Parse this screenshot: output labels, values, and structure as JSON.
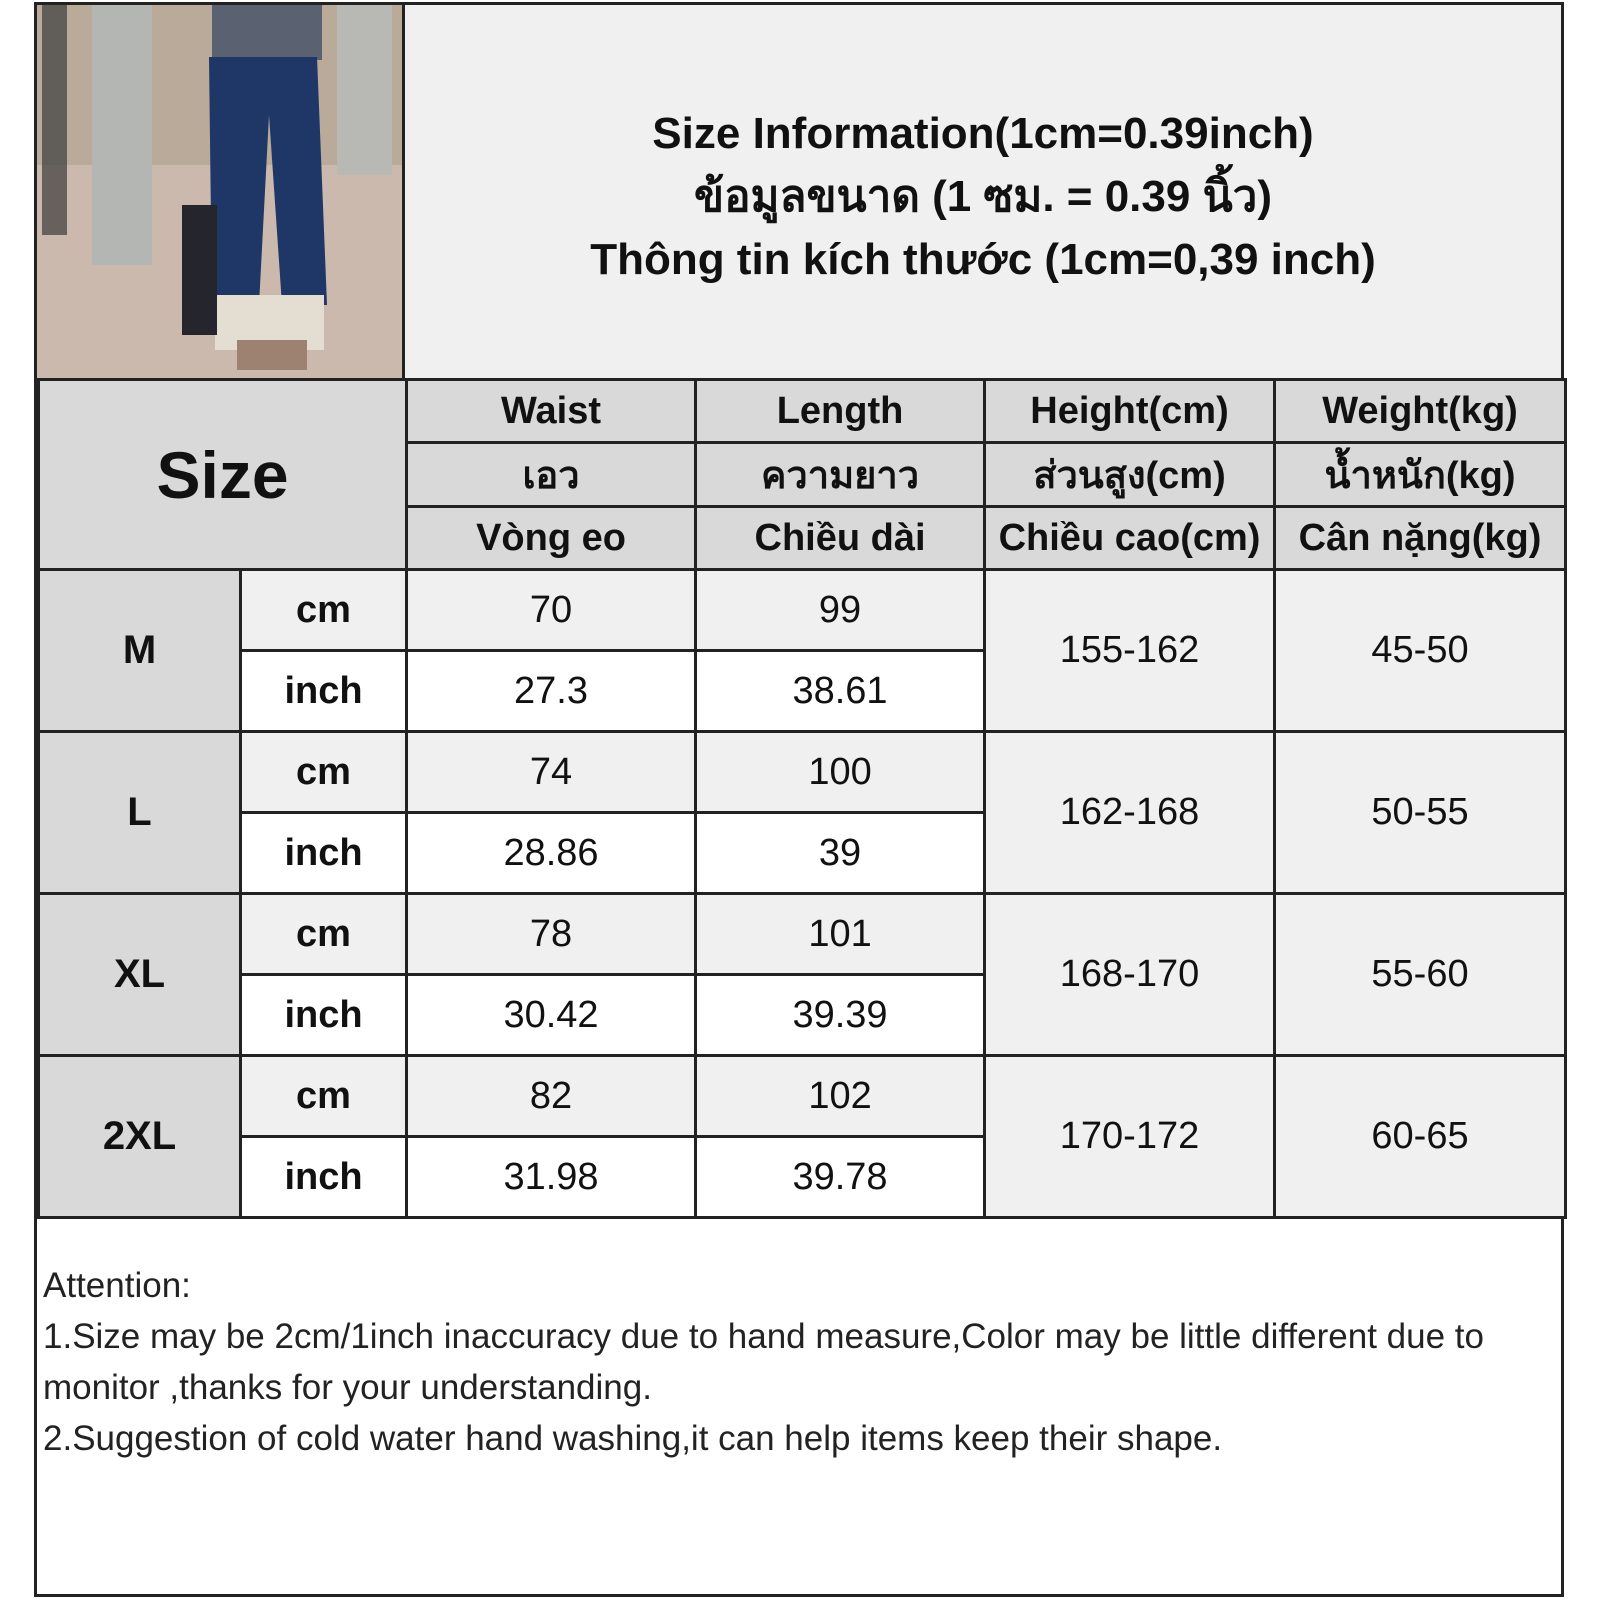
{
  "title": {
    "line_en": "Size Information(1cm=0.39inch)",
    "line_th": "ข้อมูลขนาด (1 ซม. = 0.39 นิ้ว)",
    "line_vi": "Thông tin kích thước (1cm=0,39 inch)"
  },
  "table": {
    "size_header": "Size",
    "columns": [
      {
        "en": "Waist",
        "th": "เอว",
        "vi": "Vòng eo"
      },
      {
        "en": "Length",
        "th": "ความยาว",
        "vi": "Chiều dài"
      },
      {
        "en": "Height(cm)",
        "th": "ส่วนสูง(cm)",
        "vi": "Chiều cao(cm)"
      },
      {
        "en": "Weight(kg)",
        "th": "น้ำหนัก(kg)",
        "vi": "Cân nặng(kg)"
      }
    ],
    "unit_cm": "cm",
    "unit_inch": "inch",
    "rows": [
      {
        "size": "M",
        "waist_cm": "70",
        "length_cm": "99",
        "waist_inch": "27.3",
        "length_inch": "38.61",
        "height": "155-162",
        "weight": "45-50"
      },
      {
        "size": "L",
        "waist_cm": "74",
        "length_cm": "100",
        "waist_inch": "28.86",
        "length_inch": "39",
        "height": "162-168",
        "weight": "50-55"
      },
      {
        "size": "XL",
        "waist_cm": "78",
        "length_cm": "101",
        "waist_inch": "30.42",
        "length_inch": "39.39",
        "height": "168-170",
        "weight": "55-60"
      },
      {
        "size": "2XL",
        "waist_cm": "82",
        "length_cm": "102",
        "waist_inch": "31.98",
        "length_inch": "39.78",
        "height": "170-172",
        "weight": "60-65"
      }
    ]
  },
  "notes": {
    "heading": "Attention:",
    "items": [
      "1.Size may be 2cm/1inch inaccuracy due to hand measure,Color may be little different due to monitor ,thanks for your understanding.",
      "2.Suggestion of cold water hand washing,it can help items keep their shape."
    ]
  },
  "colors": {
    "header_bg": "#d9d9d9",
    "cm_row_bg": "#f0f0f0",
    "border": "#222222",
    "pants": "#1f3766"
  }
}
